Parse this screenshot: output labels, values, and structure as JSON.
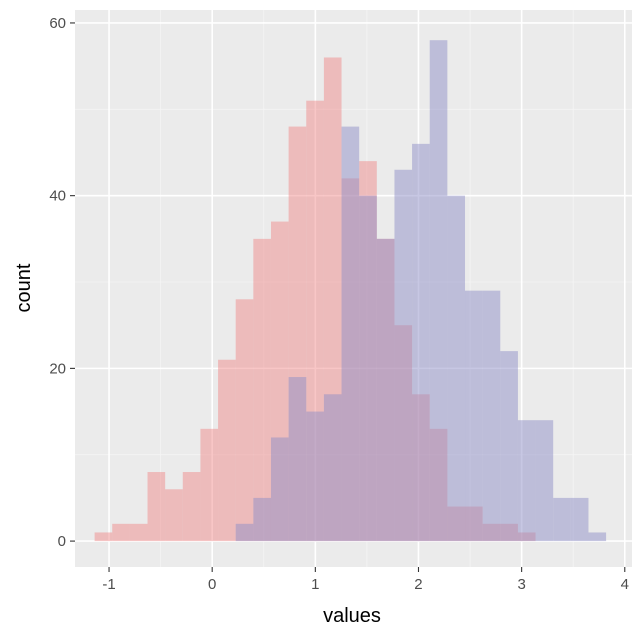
{
  "chart_data": {
    "type": "histogram",
    "title": "",
    "xlabel": "values",
    "ylabel": "count",
    "xlim": [
      -1.33,
      4.07
    ],
    "ylim": [
      -3,
      61.5
    ],
    "xticks": [
      -1,
      0,
      1,
      2,
      3,
      4
    ],
    "yticks": [
      0,
      20,
      40,
      60
    ],
    "xtick_labels": [
      "-1",
      "0",
      "1",
      "2",
      "3",
      "4"
    ],
    "ytick_labels": [
      "0",
      "20",
      "40",
      "60"
    ],
    "grid": true,
    "legend": "none",
    "bin_width": 0.171,
    "series": [
      {
        "color": "#f08080",
        "opacity": 0.45,
        "bins": [
          {
            "x0": -1.14,
            "x1": -0.969,
            "count": 1
          },
          {
            "x0": -0.969,
            "x1": -0.798,
            "count": 2
          },
          {
            "x0": -0.798,
            "x1": -0.627,
            "count": 2
          },
          {
            "x0": -0.627,
            "x1": -0.456,
            "count": 8
          },
          {
            "x0": -0.456,
            "x1": -0.285,
            "count": 6
          },
          {
            "x0": -0.285,
            "x1": -0.114,
            "count": 8
          },
          {
            "x0": -0.114,
            "x1": 0.057,
            "count": 13
          },
          {
            "x0": 0.057,
            "x1": 0.228,
            "count": 21
          },
          {
            "x0": 0.228,
            "x1": 0.399,
            "count": 28
          },
          {
            "x0": 0.399,
            "x1": 0.57,
            "count": 35
          },
          {
            "x0": 0.57,
            "x1": 0.741,
            "count": 37
          },
          {
            "x0": 0.741,
            "x1": 0.912,
            "count": 48
          },
          {
            "x0": 0.912,
            "x1": 1.083,
            "count": 51
          },
          {
            "x0": 1.083,
            "x1": 1.254,
            "count": 56
          },
          {
            "x0": 1.254,
            "x1": 1.425,
            "count": 42
          },
          {
            "x0": 1.425,
            "x1": 1.596,
            "count": 44
          },
          {
            "x0": 1.596,
            "x1": 1.767,
            "count": 35
          },
          {
            "x0": 1.767,
            "x1": 1.938,
            "count": 25
          },
          {
            "x0": 1.938,
            "x1": 2.109,
            "count": 17
          },
          {
            "x0": 2.109,
            "x1": 2.28,
            "count": 13
          },
          {
            "x0": 2.28,
            "x1": 2.451,
            "count": 4
          },
          {
            "x0": 2.451,
            "x1": 2.622,
            "count": 4
          },
          {
            "x0": 2.622,
            "x1": 2.793,
            "count": 2
          },
          {
            "x0": 2.793,
            "x1": 2.964,
            "count": 2
          },
          {
            "x0": 2.964,
            "x1": 3.135,
            "count": 1
          }
        ]
      },
      {
        "color": "#9090c8",
        "opacity": 0.5,
        "bins": [
          {
            "x0": 0.228,
            "x1": 0.399,
            "count": 2
          },
          {
            "x0": 0.399,
            "x1": 0.57,
            "count": 5
          },
          {
            "x0": 0.57,
            "x1": 0.741,
            "count": 12
          },
          {
            "x0": 0.741,
            "x1": 0.912,
            "count": 19
          },
          {
            "x0": 0.912,
            "x1": 1.083,
            "count": 15
          },
          {
            "x0": 1.083,
            "x1": 1.254,
            "count": 17
          },
          {
            "x0": 1.254,
            "x1": 1.425,
            "count": 48
          },
          {
            "x0": 1.425,
            "x1": 1.596,
            "count": 40
          },
          {
            "x0": 1.596,
            "x1": 1.767,
            "count": 35
          },
          {
            "x0": 1.767,
            "x1": 1.938,
            "count": 43
          },
          {
            "x0": 1.938,
            "x1": 2.109,
            "count": 46
          },
          {
            "x0": 2.109,
            "x1": 2.28,
            "count": 58
          },
          {
            "x0": 2.28,
            "x1": 2.451,
            "count": 40
          },
          {
            "x0": 2.451,
            "x1": 2.622,
            "count": 29
          },
          {
            "x0": 2.622,
            "x1": 2.793,
            "count": 29
          },
          {
            "x0": 2.793,
            "x1": 2.964,
            "count": 22
          },
          {
            "x0": 2.964,
            "x1": 3.135,
            "count": 14
          },
          {
            "x0": 3.135,
            "x1": 3.306,
            "count": 14
          },
          {
            "x0": 3.306,
            "x1": 3.477,
            "count": 5
          },
          {
            "x0": 3.477,
            "x1": 3.648,
            "count": 5
          },
          {
            "x0": 3.648,
            "x1": 3.819,
            "count": 1
          }
        ]
      }
    ]
  }
}
